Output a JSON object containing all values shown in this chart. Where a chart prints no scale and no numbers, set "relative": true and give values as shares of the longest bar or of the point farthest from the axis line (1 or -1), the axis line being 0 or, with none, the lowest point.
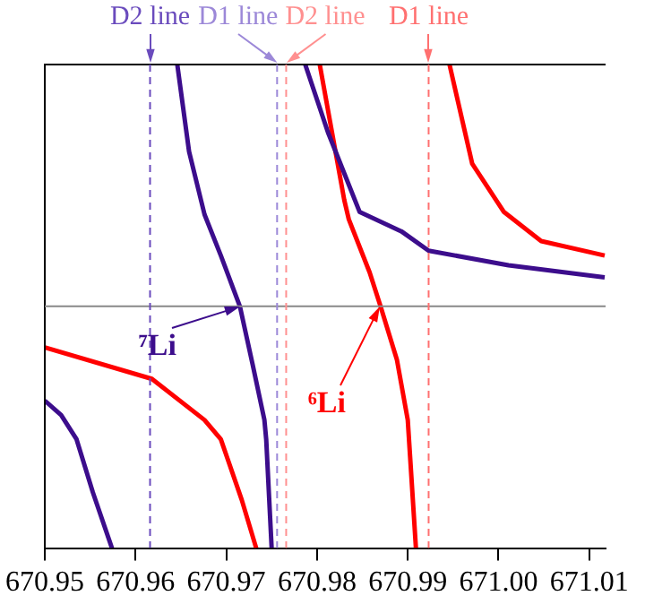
{
  "chart_data": {
    "type": "line",
    "relative": true,
    "xlim": [
      670.95,
      671.0118
    ],
    "xticks": [
      670.95,
      670.96,
      670.97,
      670.98,
      670.99,
      {
        "value": 671.0,
        "label": "671.00"
      },
      671.01
    ],
    "series": [
      {
        "color": "#3c0d8c",
        "x": [
          670.95,
          670.9518,
          670.9535,
          670.9553,
          670.9574,
          670.96,
          670.9646,
          670.9659,
          670.9676,
          670.9694,
          670.9715,
          670.9729,
          670.9742,
          670.9744,
          670.975,
          670.977,
          670.9787,
          670.9812,
          670.9847,
          670.9893,
          670.9923,
          671.0011,
          671.0117
        ],
        "values": [
          -0.39,
          -0.45,
          -0.55,
          -0.77,
          -1,
          null,
          1,
          0.64,
          0.38,
          0.21,
          0,
          -0.24,
          -0.47,
          -0.55,
          -1,
          null,
          1,
          0.72,
          0.39,
          0.31,
          0.23,
          0.17,
          0.12
        ]
      },
      {
        "color": "#ff0000",
        "x": [
          670.95,
          670.9618,
          670.9676,
          670.9694,
          670.9717,
          670.9733,
          670.977,
          670.9803,
          670.983,
          670.9835,
          670.9858,
          670.987,
          670.9888,
          670.99,
          670.9909,
          670.993,
          670.9946,
          670.9971,
          671.0006,
          671.0047,
          671.0117
        ],
        "values": [
          -0.17,
          -0.3,
          -0.47,
          -0.55,
          -0.8,
          -1,
          null,
          1,
          0.44,
          0.36,
          0.14,
          0,
          -0.22,
          -0.47,
          -1,
          null,
          1,
          0.59,
          0.39,
          0.27,
          0.21
        ]
      }
    ],
    "ref_lines": [
      {
        "axis": "x",
        "value": 670.9616,
        "label": "D2 line",
        "color": "#6a4bbd",
        "line_style": "dashed"
      },
      {
        "axis": "x",
        "value": 670.9756,
        "label": "D1 line",
        "color": "#9c88d8",
        "line_style": "dashed"
      },
      {
        "axis": "x",
        "value": 670.9766,
        "label": "D2 line",
        "color": "#ff9090",
        "line_style": "dashed"
      },
      {
        "axis": "x",
        "value": 670.9923,
        "label": "D1 line",
        "color": "#ff7070",
        "line_style": "dashed"
      }
    ],
    "annotations": [
      {
        "text": "⁷Li",
        "x": 670.9715,
        "y": 0
      },
      {
        "text": "⁶Li",
        "x": 670.987,
        "y": 0
      }
    ],
    "legend": false
  }
}
